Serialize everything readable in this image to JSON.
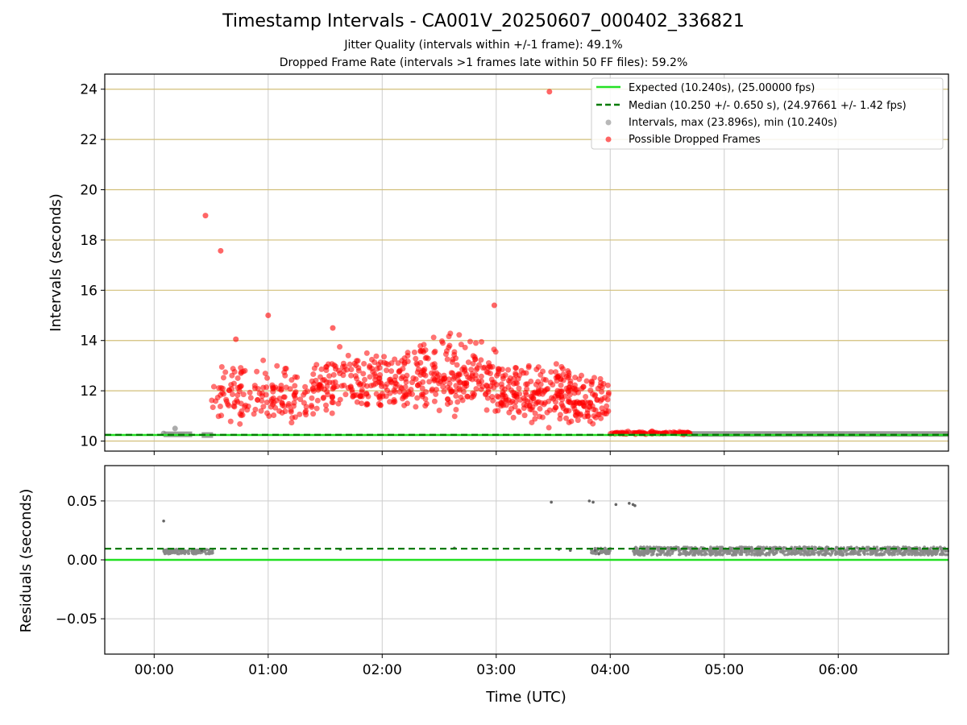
{
  "header": {
    "title": "Timestamp Intervals - CA001V_20250607_000402_336821",
    "subtitle1": "Jitter Quality (intervals within +/-1 frame): 49.1%",
    "subtitle2": "Dropped Frame Rate (intervals >1 frames late within 50 FF files): 59.2%"
  },
  "colors": {
    "expected": "#22e022",
    "median": "#007a00",
    "intervals": "#888888",
    "dropped": "#ff0000",
    "top_grid": "#d2bf7a",
    "grid": "#cccccc"
  },
  "chart_data": [
    {
      "type": "scatter",
      "ylabel": "Intervals (seconds)",
      "xlim_minutes": [
        -26,
        418
      ],
      "ylim": [
        9.6,
        24.6
      ],
      "y_ticks": [
        10,
        12,
        14,
        16,
        18,
        20,
        22,
        24
      ],
      "y_tick_labels": [
        "10",
        "12",
        "14",
        "16",
        "18",
        "20",
        "22",
        "24"
      ],
      "grid": true,
      "legend_position": "top-right",
      "legend": [
        {
          "key": "expected",
          "label": "Expected (10.240s), (25.00000 fps)",
          "style": "line"
        },
        {
          "key": "median",
          "label": "Median (10.250 +/- 0.650 s), (24.97661 +/- 1.42 fps)",
          "style": "dashed"
        },
        {
          "key": "intervals",
          "label": "Intervals, max (23.896s), min (10.240s)",
          "style": "marker"
        },
        {
          "key": "dropped",
          "label": "Possible Dropped Frames",
          "style": "marker"
        }
      ],
      "expected_value": 10.24,
      "median_value": 10.25,
      "series": [
        {
          "name": "Intervals, max (23.896s), min (10.240s)",
          "normal_bands": [
            {
              "x_range": [
                5,
                20
              ],
              "y": 10.27
            },
            {
              "x_range": [
                25,
                31
              ],
              "y": 10.24
            },
            {
              "x_range": [
                280,
                418
              ],
              "y": 10.28
            }
          ],
          "points": [
            {
              "x": 11,
              "y": 10.5
            },
            {
              "x": 5,
              "y": 10.3
            }
          ]
        },
        {
          "name": "Possible Dropped Frames",
          "x": [
            27,
            35,
            43,
            60,
            94,
            179,
            208
          ],
          "y": [
            18.97,
            17.57,
            14.05,
            15.0,
            14.5,
            15.4,
            23.9
          ],
          "clusters": [
            {
              "x_range": [
                30,
                85
              ],
              "y_range": [
                10.3,
                13.5
              ],
              "n": 160
            },
            {
              "x_range": [
                85,
                135
              ],
              "y_range": [
                10.9,
                14.0
              ],
              "n": 200
            },
            {
              "x_range": [
                135,
                180
              ],
              "y_range": [
                10.8,
                14.6
              ],
              "n": 200
            },
            {
              "x_range": [
                180,
                220
              ],
              "y_range": [
                10.3,
                13.5
              ],
              "n": 200
            },
            {
              "x_range": [
                220,
                240
              ],
              "y_range": [
                10.3,
                13.0
              ],
              "n": 90
            },
            {
              "x_range": [
                240,
                282
              ],
              "y_range": [
                10.25,
                10.4
              ],
              "n": 90
            }
          ]
        }
      ]
    },
    {
      "type": "scatter",
      "xlabel": "Time (UTC)",
      "ylabel": "Residuals (seconds)",
      "xlim_minutes": [
        -26,
        418
      ],
      "ylim": [
        -0.08,
        0.08
      ],
      "y_ticks": [
        -0.05,
        0.0,
        0.05
      ],
      "y_tick_labels": [
        "−0.05",
        "0.00",
        "0.05"
      ],
      "x_ticks_minutes": [
        0,
        60,
        120,
        180,
        240,
        300,
        360
      ],
      "x_tick_labels": [
        "00:00",
        "01:00",
        "02:00",
        "03:00",
        "04:00",
        "05:00",
        "06:00"
      ],
      "grid": true,
      "expected_value": 0.0,
      "median_value": 0.0095,
      "series": [
        {
          "name": "Residuals",
          "x": [
            5,
            25,
            98,
            158,
            209,
            213,
            219,
            229,
            231,
            232,
            234,
            243,
            250,
            252,
            253
          ],
          "y": [
            0.033,
            0.008,
            0.009,
            0.01,
            0.049,
            0.009,
            0.008,
            0.05,
            0.049,
            0.008,
            0.005,
            0.047,
            0.048,
            0.047,
            0.046
          ],
          "bands": [
            {
              "x_range": [
                5,
                31
              ],
              "y_range": [
                0.005,
                0.009
              ]
            },
            {
              "x_range": [
                230,
                240
              ],
              "y_range": [
                0.005,
                0.01
              ]
            },
            {
              "x_range": [
                252,
                418
              ],
              "y_range": [
                0.004,
                0.011
              ]
            }
          ]
        }
      ]
    }
  ]
}
